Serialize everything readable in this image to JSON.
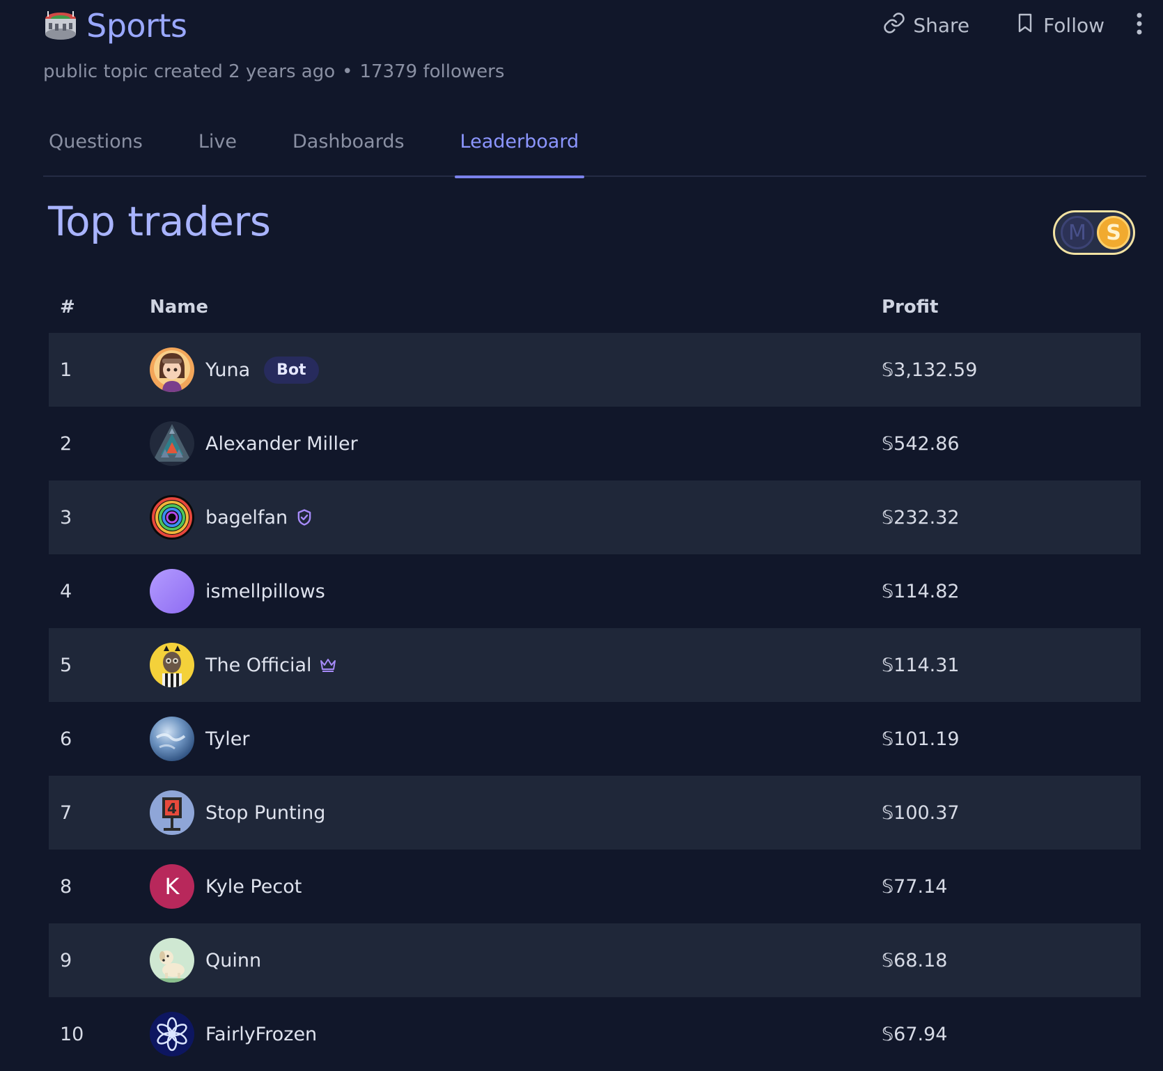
{
  "header": {
    "title": "Sports",
    "subtitle": "public topic created 2 years ago",
    "followers": "17379 followers",
    "separator": "•",
    "share_label": "Share",
    "follow_label": "Follow",
    "icons": [
      "stadium-icon",
      "link-icon",
      "bookmark-icon",
      "more-vertical-icon"
    ]
  },
  "tabs": [
    {
      "label": "Questions",
      "active": false
    },
    {
      "label": "Live",
      "active": false
    },
    {
      "label": "Dashboards",
      "active": false
    },
    {
      "label": "Leaderboard",
      "active": true
    }
  ],
  "leaderboard": {
    "title": "Top traders",
    "currency_toggle": {
      "left": "M",
      "right": "S",
      "selected": "sweepcash"
    },
    "columns": {
      "rank": "#",
      "name": "Name",
      "profit": "Profit"
    },
    "rows": [
      {
        "rank": "1",
        "name": "Yuna",
        "badge": "Bot",
        "profit": "𝕊3,132.59",
        "avatar": "anime-girl-avatar"
      },
      {
        "rank": "2",
        "name": "Alexander Miller",
        "profit": "𝕊542.86",
        "avatar": "triangle-pattern-avatar"
      },
      {
        "rank": "3",
        "name": "bagelfan",
        "profit": "𝕊232.32",
        "avatar": "rainbow-spiral-avatar",
        "icon": "shield-check-icon"
      },
      {
        "rank": "4",
        "name": "ismellpillows",
        "profit": "𝕊114.82",
        "avatar": "purple-circle-avatar"
      },
      {
        "rank": "5",
        "name": "The Official",
        "profit": "𝕊114.31",
        "avatar": "referee-avatar",
        "icon": "crown-icon"
      },
      {
        "rank": "6",
        "name": "Tyler",
        "profit": "𝕊101.19",
        "avatar": "earth-avatar"
      },
      {
        "rank": "7",
        "name": "Stop Punting",
        "profit": "𝕊100.37",
        "avatar": "scoreboard-avatar"
      },
      {
        "rank": "8",
        "name": "Kyle Pecot",
        "profit": "𝕊77.14",
        "avatar": "letter-avatar",
        "initial": "K"
      },
      {
        "rank": "9",
        "name": "Quinn",
        "profit": "𝕊68.18",
        "avatar": "dog-avatar"
      },
      {
        "rank": "10",
        "name": "FairlyFrozen",
        "profit": "𝕊67.94",
        "avatar": "snowflake-avatar"
      }
    ]
  },
  "colors": {
    "background": "#11172a",
    "row_shade": "#1f2739",
    "accent": "#8c96ff",
    "bot_badge": "#272b5d",
    "toggle_border": "#f2e2a2",
    "sweepcash_coin": "#f1aa2f",
    "letter_avatar": "#b8285b"
  }
}
